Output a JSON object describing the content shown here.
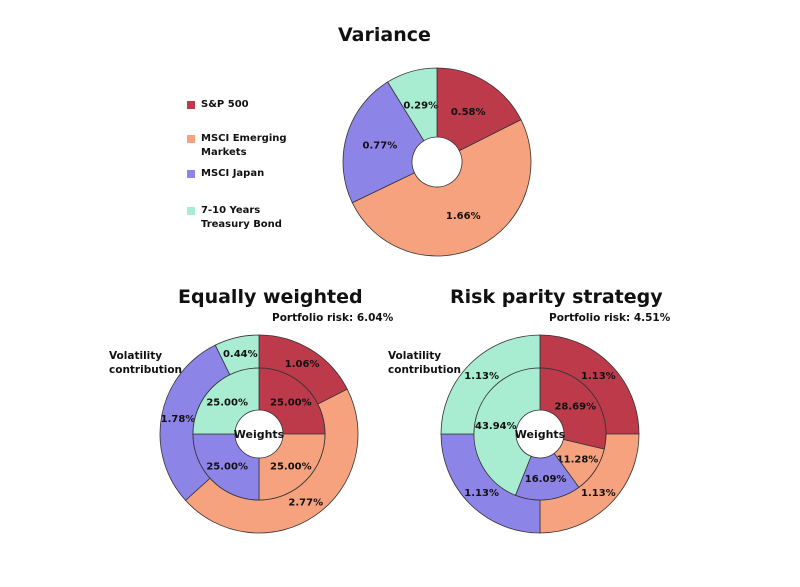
{
  "colors": {
    "sp500": "#bd3a4a",
    "emerging": "#f7a27e",
    "japan": "#8d84e8",
    "treasury": "#a8ecd2"
  },
  "legend": [
    {
      "label": "S&P 500",
      "color": "#bd3a4a"
    },
    {
      "label": "MSCI Emerging Markets",
      "color": "#f7a27e"
    },
    {
      "label": "MSCI Japan",
      "color": "#8d84e8"
    },
    {
      "label": "7-10 Years Treasury Bond",
      "color": "#a8ecd2"
    }
  ],
  "variance": {
    "title": "Variance"
  },
  "equal": {
    "title": "Equally weighted",
    "risk": "Portfolio risk: 6.04%",
    "side_label": "Volatility contribution",
    "center_label": "Weights"
  },
  "parity": {
    "title": "Risk parity strategy",
    "risk": "Portfolio risk: 4.51%",
    "side_label": "Volatility contribution",
    "center_label": "Weights"
  },
  "chart_data": [
    {
      "type": "pie",
      "title": "Variance",
      "categories": [
        "S&P 500",
        "MSCI Emerging Markets",
        "MSCI Japan",
        "7-10 Years Treasury Bond"
      ],
      "values": [
        0.58,
        1.66,
        0.77,
        0.29
      ],
      "labels": [
        "0.58%",
        "1.66%",
        "0.77%",
        "0.29%"
      ]
    },
    {
      "type": "pie",
      "title": "Equally weighted",
      "categories": [
        "S&P 500",
        "MSCI Emerging Markets",
        "MSCI Japan",
        "7-10 Years Treasury Bond"
      ],
      "series": [
        {
          "name": "Volatility contribution",
          "values": [
            1.06,
            2.77,
            1.78,
            0.44
          ],
          "labels": [
            "1.06%",
            "2.77%",
            "1.78%",
            "0.44%"
          ]
        },
        {
          "name": "Weights",
          "values": [
            25.0,
            25.0,
            25.0,
            25.0
          ],
          "labels": [
            "25.00%",
            "25.00%",
            "25.00%",
            "25.00%"
          ]
        }
      ]
    },
    {
      "type": "pie",
      "title": "Risk parity strategy",
      "categories": [
        "S&P 500",
        "MSCI Emerging Markets",
        "MSCI Japan",
        "7-10 Years Treasury Bond"
      ],
      "series": [
        {
          "name": "Volatility contribution",
          "values": [
            1.13,
            1.13,
            1.13,
            1.13
          ],
          "labels": [
            "1.13%",
            "1.13%",
            "1.13%",
            "1.13%"
          ]
        },
        {
          "name": "Weights",
          "values": [
            28.69,
            11.28,
            16.09,
            43.94
          ],
          "labels": [
            "28.69%",
            "11.28%",
            "16.09%",
            "43.94%"
          ]
        }
      ]
    }
  ]
}
